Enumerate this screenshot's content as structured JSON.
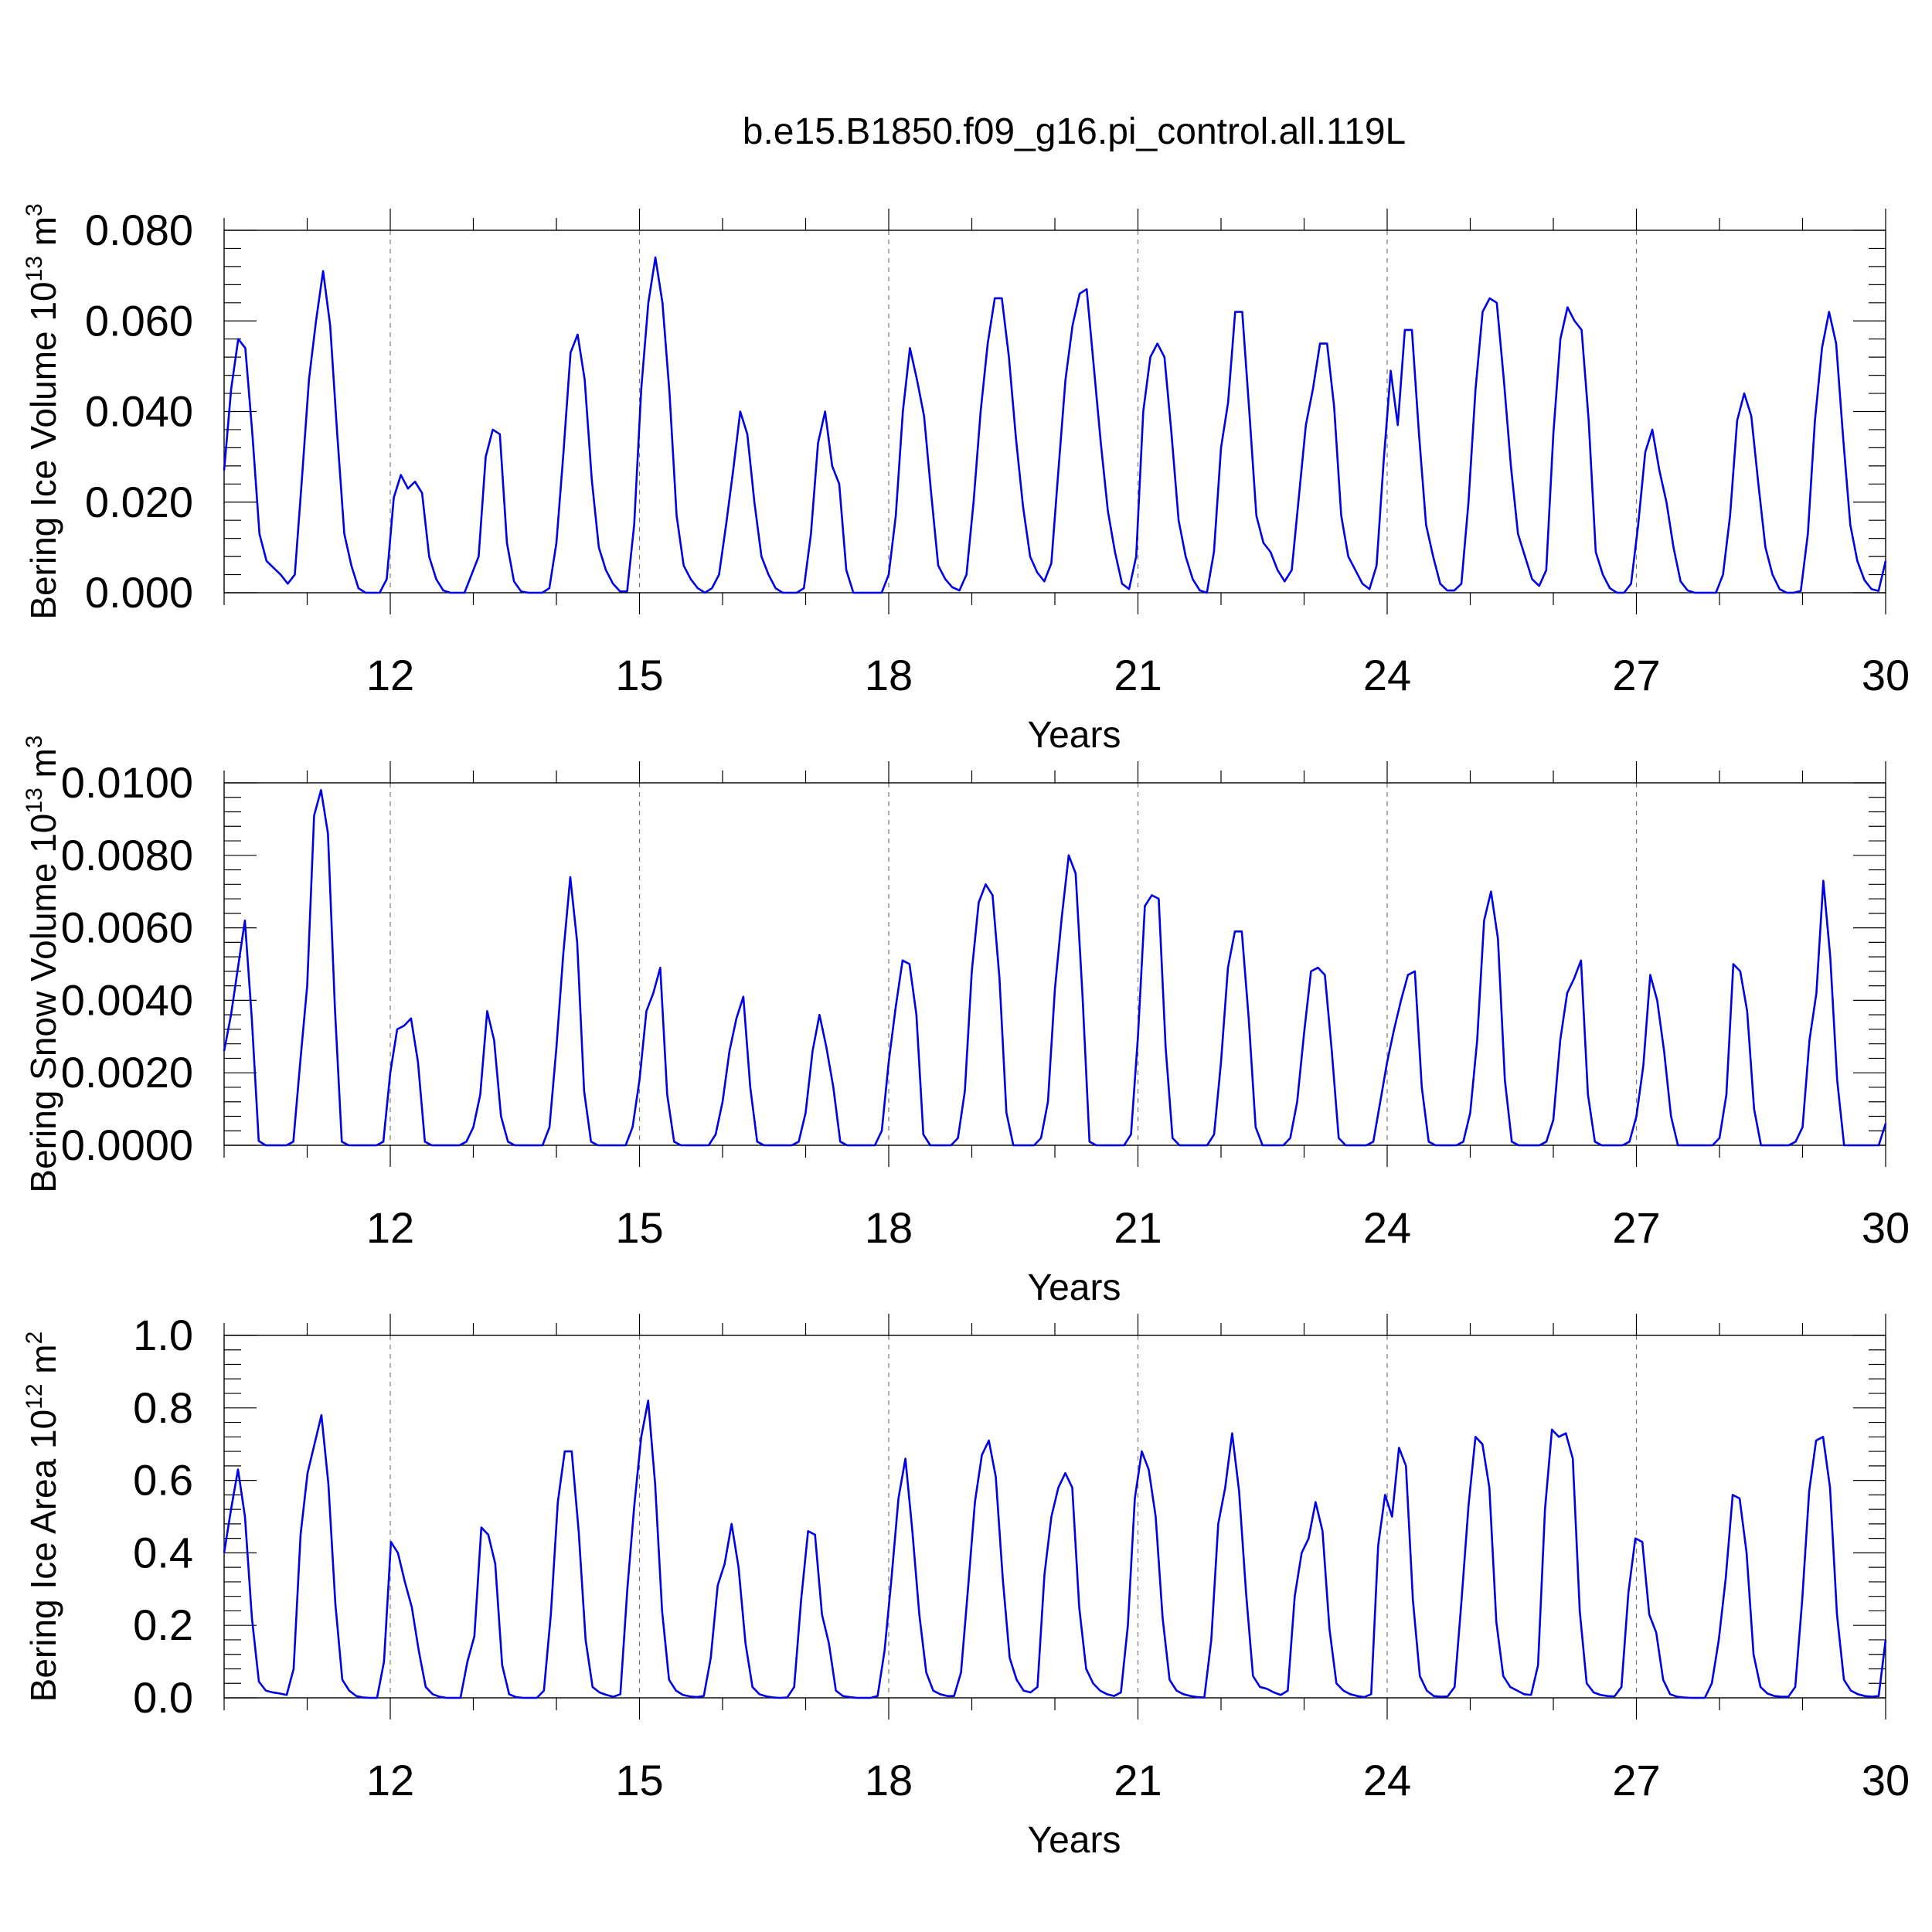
{
  "chart_data": {
    "title": "b.e15.B1850.f09_g16.pi_control.all.119L",
    "panels": [
      {
        "type": "line",
        "ylabel": {
          "main": "Bering Ice Volume 10",
          "sup": "13",
          "unit": " m",
          "unit_sup": "3"
        },
        "xlabel": "Years",
        "xlim": [
          10,
          30
        ],
        "ylim": [
          0,
          0.08
        ],
        "yticks": [
          0,
          0.02,
          0.04,
          0.06,
          0.08
        ],
        "ytick_labels": [
          "0.000",
          "0.020",
          "0.040",
          "0.060",
          "0.080"
        ],
        "xticks": [
          12,
          15,
          18,
          21,
          24,
          27,
          30
        ],
        "xtick_labels": [
          "12",
          "15",
          "18",
          "21",
          "24",
          "27",
          "30"
        ],
        "grid_x": [
          12,
          15,
          18,
          21,
          24,
          27
        ],
        "color": "#0000e6",
        "series": [
          {
            "values": [
              0.027,
              0.045,
              0.056,
              0.054,
              0.035,
              0.013,
              0.007,
              0.0055,
              0.004,
              0.002,
              0.004,
              0.025,
              0.047,
              0.06,
              0.071,
              0.059,
              0.035,
              0.013,
              0.006,
              0.001,
              0,
              0,
              0,
              0.003,
              0.021,
              0.026,
              0.023,
              0.0245,
              0.022,
              0.008,
              0.003,
              0.0005,
              0,
              0,
              0,
              0.004,
              0.008,
              0.03,
              0.036,
              0.035,
              0.011,
              0.0025,
              0.0003,
              0,
              0,
              0,
              0.001,
              0.011,
              0.031,
              0.053,
              0.057,
              0.047,
              0.025,
              0.01,
              0.005,
              0.002,
              0.0003,
              0.0003,
              0.015,
              0.045,
              0.064,
              0.074,
              0.064,
              0.044,
              0.017,
              0.006,
              0.003,
              0.001,
              0,
              0.001,
              0.004,
              0.015,
              0.027,
              0.04,
              0.035,
              0.02,
              0.008,
              0.004,
              0.001,
              0,
              0,
              0,
              0.001,
              0.013,
              0.033,
              0.04,
              0.028,
              0.024,
              0.005,
              0,
              0,
              0,
              0,
              0,
              0.004,
              0.017,
              0.04,
              0.054,
              0.047,
              0.039,
              0.022,
              0.006,
              0.003,
              0.0012,
              0.0005,
              0.004,
              0.02,
              0.04,
              0.055,
              0.065,
              0.065,
              0.052,
              0.034,
              0.019,
              0.008,
              0.0045,
              0.0025,
              0.0065,
              0.027,
              0.047,
              0.059,
              0.066,
              0.067,
              0.05,
              0.033,
              0.018,
              0.009,
              0.002,
              0.0008,
              0.008,
              0.04,
              0.052,
              0.055,
              0.052,
              0.035,
              0.016,
              0.008,
              0.003,
              0.0005,
              0,
              0.009,
              0.032,
              0.042,
              0.062,
              0.062,
              0.04,
              0.017,
              0.011,
              0.009,
              0.005,
              0.0025,
              0.005,
              0.021,
              0.037,
              0.045,
              0.055,
              0.055,
              0.041,
              0.017,
              0.008,
              0.005,
              0.002,
              0.0008,
              0.006,
              0.029,
              0.049,
              0.037,
              0.058,
              0.058,
              0.035,
              0.015,
              0.008,
              0.002,
              0.0005,
              0.0005,
              0.002,
              0.02,
              0.045,
              0.062,
              0.065,
              0.064,
              0.047,
              0.028,
              0.013,
              0.008,
              0.003,
              0.0015,
              0.005,
              0.035,
              0.056,
              0.063,
              0.06,
              0.058,
              0.038,
              0.009,
              0.004,
              0.001,
              0,
              0,
              0.002,
              0.015,
              0.031,
              0.036,
              0.027,
              0.02,
              0.01,
              0.0025,
              0.0005,
              0,
              0,
              0,
              0,
              0.004,
              0.017,
              0.038,
              0.044,
              0.039,
              0.024,
              0.01,
              0.004,
              0.0008,
              0,
              0,
              0.0004,
              0.013,
              0.038,
              0.054,
              0.062,
              0.055,
              0.034,
              0.015,
              0.007,
              0.0028,
              0.0008,
              0.0004,
              0.007
            ]
          }
        ]
      },
      {
        "type": "line",
        "ylabel": {
          "main": "Bering Snow Volume 10",
          "sup": "13",
          "unit": " m",
          "unit_sup": "3"
        },
        "xlabel": "Years",
        "xlim": [
          10,
          30
        ],
        "ylim": [
          0,
          0.01
        ],
        "yticks": [
          0,
          0.002,
          0.004,
          0.006,
          0.008,
          0.01
        ],
        "ytick_labels": [
          "0.0000",
          "0.0020",
          "0.0040",
          "0.0060",
          "0.0080",
          "0.0100"
        ],
        "xticks": [
          12,
          15,
          18,
          21,
          24,
          27,
          30
        ],
        "xtick_labels": [
          "12",
          "15",
          "18",
          "21",
          "24",
          "27",
          "30"
        ],
        "grid_x": [
          12,
          15,
          18,
          21,
          24,
          27
        ],
        "color": "#0000e6",
        "series": [
          {
            "values": [
              0.0026,
              0.0036,
              0.0049,
              0.0062,
              0.0035,
              0.00012,
              0,
              0,
              0,
              0,
              0.0001,
              0.0023,
              0.0044,
              0.0091,
              0.0098,
              0.0086,
              0.0038,
              0.0001,
              0,
              0,
              0,
              0,
              0,
              0.0001,
              0.002,
              0.0032,
              0.0033,
              0.0035,
              0.0023,
              0.0001,
              0,
              0,
              0,
              0,
              0,
              0.0001,
              0.0005,
              0.0014,
              0.0037,
              0.0029,
              0.0008,
              0.0001,
              0,
              0,
              0,
              0,
              0,
              0.0005,
              0.0027,
              0.0053,
              0.0074,
              0.0056,
              0.0015,
              0.0001,
              0,
              0,
              0,
              0,
              0,
              0.0005,
              0.0018,
              0.0037,
              0.0042,
              0.0049,
              0.0014,
              0.0001,
              0,
              0,
              0,
              0,
              0,
              0.0003,
              0.0012,
              0.0026,
              0.0035,
              0.0041,
              0.0016,
              0.0001,
              0,
              0,
              0,
              0,
              0,
              0.0001,
              0.0009,
              0.0026,
              0.0036,
              0.0027,
              0.0016,
              0.0001,
              0,
              0,
              0,
              0,
              0,
              0.0004,
              0.0023,
              0.0038,
              0.0051,
              0.005,
              0.0036,
              0.0003,
              0,
              0,
              0,
              0,
              0.0002,
              0.0015,
              0.0048,
              0.0067,
              0.0072,
              0.0069,
              0.0046,
              0.0009,
              0,
              0,
              0,
              0,
              0.0002,
              0.0012,
              0.0043,
              0.0063,
              0.008,
              0.0075,
              0.0041,
              0.0001,
              0,
              0,
              0,
              0,
              0,
              0.0003,
              0.003,
              0.0066,
              0.0069,
              0.0068,
              0.0027,
              0.0002,
              0,
              0,
              0,
              0,
              0,
              0.0003,
              0.0023,
              0.0049,
              0.0059,
              0.0059,
              0.0035,
              0.0005,
              0,
              0,
              0,
              0,
              0.0002,
              0.0012,
              0.0031,
              0.0048,
              0.0049,
              0.0047,
              0.0026,
              0.0002,
              0,
              0,
              0,
              0,
              0.0001,
              0.0012,
              0.0023,
              0.0032,
              0.004,
              0.0047,
              0.0048,
              0.0016,
              0.0001,
              0,
              0,
              0,
              0,
              0.0001,
              0.0009,
              0.0029,
              0.0062,
              0.007,
              0.0057,
              0.0018,
              0.0001,
              0,
              0,
              0,
              0,
              0.0001,
              0.0007,
              0.0029,
              0.0042,
              0.0046,
              0.0051,
              0.0014,
              0.0001,
              0,
              0,
              0,
              0,
              0.0001,
              0.0008,
              0.0022,
              0.0047,
              0.004,
              0.0026,
              0.0008,
              0,
              0,
              0,
              0,
              0,
              0,
              0.0002,
              0.0014,
              0.005,
              0.0048,
              0.0037,
              0.001,
              0,
              0,
              0,
              0,
              0,
              0.0001,
              0.0005,
              0.0029,
              0.0042,
              0.0073,
              0.0052,
              0.0018,
              0,
              0,
              0,
              0,
              0,
              0,
              0.0006
            ]
          }
        ]
      },
      {
        "type": "line",
        "ylabel": {
          "main": "Bering Ice Area 10",
          "sup": "12",
          "unit": " m",
          "unit_sup": "2"
        },
        "xlabel": "Years",
        "xlim": [
          10,
          30
        ],
        "ylim": [
          0,
          1.0
        ],
        "yticks": [
          0,
          0.2,
          0.4,
          0.6,
          0.8,
          1.0
        ],
        "ytick_labels": [
          "0.0",
          "0.2",
          "0.4",
          "0.6",
          "0.8",
          "1.0"
        ],
        "xticks": [
          12,
          15,
          18,
          21,
          24,
          27,
          30
        ],
        "xtick_labels": [
          "12",
          "15",
          "18",
          "21",
          "24",
          "27",
          "30"
        ],
        "grid_x": [
          12,
          15,
          18,
          21,
          24,
          27
        ],
        "color": "#0000e6",
        "series": [
          {
            "values": [
              0.4,
              0.52,
              0.63,
              0.5,
              0.22,
              0.045,
              0.02,
              0.015,
              0.012,
              0.008,
              0.08,
              0.45,
              0.62,
              0.7,
              0.78,
              0.59,
              0.26,
              0.05,
              0.02,
              0.005,
              0.001,
              0,
              0,
              0.1,
              0.43,
              0.4,
              0.32,
              0.25,
              0.13,
              0.03,
              0.01,
              0.003,
              0,
              0,
              0,
              0.1,
              0.17,
              0.47,
              0.45,
              0.37,
              0.09,
              0.01,
              0.002,
              0,
              0,
              0,
              0.02,
              0.23,
              0.54,
              0.68,
              0.68,
              0.46,
              0.16,
              0.03,
              0.015,
              0.008,
              0.003,
              0.01,
              0.3,
              0.53,
              0.72,
              0.82,
              0.59,
              0.24,
              0.05,
              0.02,
              0.008,
              0.004,
              0.002,
              0.005,
              0.11,
              0.31,
              0.37,
              0.48,
              0.36,
              0.15,
              0.03,
              0.01,
              0.004,
              0.001,
              0,
              0.001,
              0.03,
              0.27,
              0.46,
              0.45,
              0.23,
              0.15,
              0.02,
              0.005,
              0.002,
              0,
              0,
              0,
              0.005,
              0.13,
              0.33,
              0.55,
              0.66,
              0.46,
              0.23,
              0.07,
              0.02,
              0.01,
              0.005,
              0.005,
              0.07,
              0.3,
              0.54,
              0.67,
              0.71,
              0.61,
              0.33,
              0.11,
              0.05,
              0.02,
              0.015,
              0.03,
              0.34,
              0.5,
              0.58,
              0.62,
              0.58,
              0.25,
              0.08,
              0.04,
              0.02,
              0.01,
              0.005,
              0.015,
              0.2,
              0.55,
              0.68,
              0.63,
              0.5,
              0.22,
              0.05,
              0.02,
              0.01,
              0.005,
              0.002,
              0.001,
              0.16,
              0.48,
              0.58,
              0.73,
              0.57,
              0.29,
              0.06,
              0.03,
              0.025,
              0.015,
              0.008,
              0.02,
              0.28,
              0.4,
              0.44,
              0.54,
              0.46,
              0.19,
              0.04,
              0.02,
              0.01,
              0.005,
              0.002,
              0.01,
              0.42,
              0.56,
              0.5,
              0.69,
              0.64,
              0.27,
              0.06,
              0.02,
              0.005,
              0.003,
              0.004,
              0.03,
              0.27,
              0.53,
              0.72,
              0.7,
              0.58,
              0.21,
              0.06,
              0.03,
              0.02,
              0.01,
              0.008,
              0.09,
              0.52,
              0.74,
              0.72,
              0.73,
              0.66,
              0.24,
              0.04,
              0.015,
              0.008,
              0.005,
              0.004,
              0.03,
              0.29,
              0.44,
              0.43,
              0.23,
              0.18,
              0.05,
              0.01,
              0.003,
              0.001,
              0,
              0,
              0,
              0.04,
              0.16,
              0.33,
              0.56,
              0.55,
              0.4,
              0.12,
              0.03,
              0.012,
              0.005,
              0.003,
              0.003,
              0.03,
              0.27,
              0.57,
              0.71,
              0.72,
              0.58,
              0.23,
              0.05,
              0.02,
              0.01,
              0.005,
              0.003,
              0.005,
              0.16
            ]
          }
        ]
      }
    ]
  }
}
